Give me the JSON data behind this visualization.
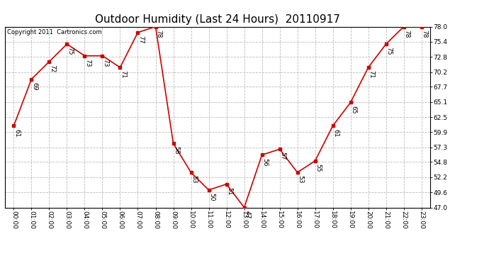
{
  "title": "Outdoor Humidity (Last 24 Hours)  20110917",
  "copyright_text": "Copyright 2011  Cartronics.com",
  "hours": [
    "00:00",
    "01:00",
    "02:00",
    "03:00",
    "04:00",
    "05:00",
    "06:00",
    "07:00",
    "08:00",
    "09:00",
    "10:00",
    "11:00",
    "12:00",
    "13:00",
    "14:00",
    "15:00",
    "16:00",
    "17:00",
    "18:00",
    "19:00",
    "20:00",
    "21:00",
    "22:00",
    "23:00"
  ],
  "values": [
    61,
    69,
    72,
    75,
    73,
    73,
    71,
    77,
    78,
    58,
    53,
    50,
    51,
    47,
    56,
    57,
    53,
    55,
    61,
    65,
    71,
    75,
    78,
    78
  ],
  "line_color": "#cc0000",
  "marker_color": "#cc0000",
  "bg_color": "#ffffff",
  "grid_color": "#bbbbbb",
  "ylim_min": 47.0,
  "ylim_max": 78.0,
  "yticks": [
    47.0,
    49.6,
    52.2,
    54.8,
    57.3,
    59.9,
    62.5,
    65.1,
    67.7,
    70.2,
    72.8,
    75.4,
    78.0
  ],
  "title_fontsize": 11,
  "label_fontsize": 6.5,
  "tick_fontsize": 6.5,
  "copyright_fontsize": 6
}
